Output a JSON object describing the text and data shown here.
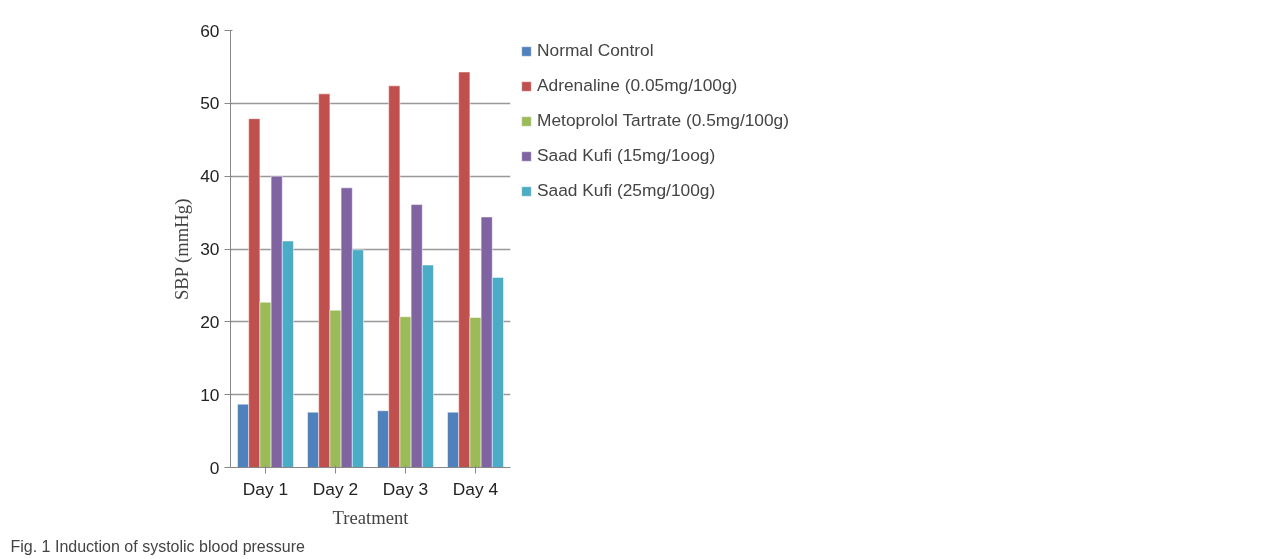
{
  "chart_data": {
    "type": "bar",
    "xlabel": "Treatment",
    "ylabel": "SBP (mmHg)",
    "categories": [
      "Day 1",
      "Day 2",
      "Day 3",
      "Day 4"
    ],
    "series": [
      {
        "name": "Normal Control",
        "color": "#4f81bd",
        "values": [
          8.7,
          7.6,
          7.8,
          7.6
        ]
      },
      {
        "name": "Adrenaline (0.05mg/100g)",
        "color": "#c0504d",
        "values": [
          47.9,
          51.3,
          52.4,
          54.3
        ]
      },
      {
        "name": "Metoprolol Tartrate (0.5mg/100g)",
        "color": "#9bbb59",
        "values": [
          22.7,
          21.6,
          20.7,
          20.6
        ]
      },
      {
        "name": "Saad Kufi (15mg/1oog)",
        "color": "#8064a2",
        "values": [
          40.0,
          38.4,
          36.1,
          34.4
        ]
      },
      {
        "name": "Saad Kufi (25mg/100g)",
        "color": "#4bacc6",
        "values": [
          31.1,
          29.9,
          27.8,
          26.1
        ]
      }
    ],
    "ylim": [
      0,
      60
    ],
    "yticks": [
      0,
      10,
      20,
      30,
      40,
      50,
      60
    ],
    "grid": "y",
    "legend": "right",
    "annotations": [
      "Fig. 1 Induction of systolic blood pressure"
    ]
  }
}
